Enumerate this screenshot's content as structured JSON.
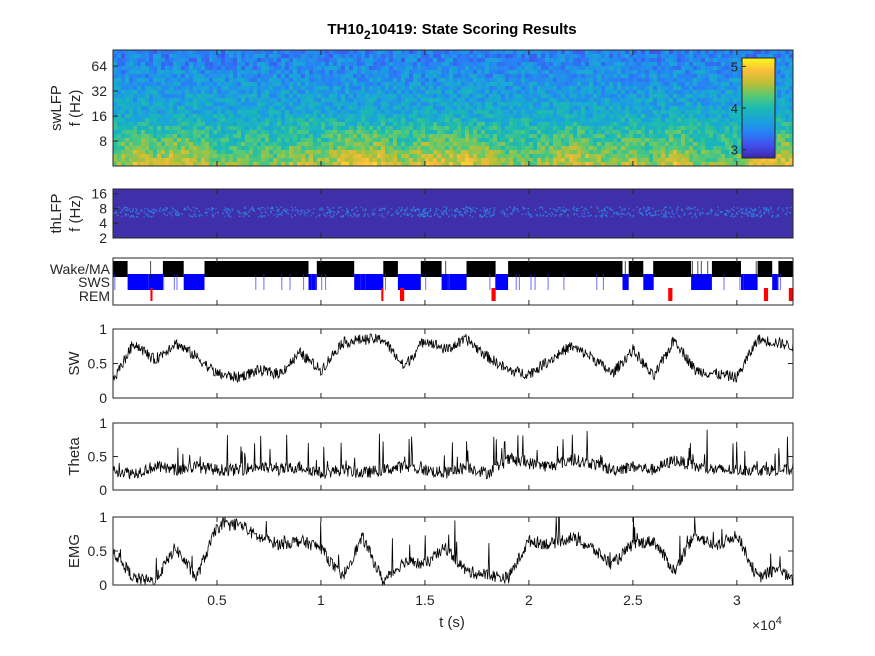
{
  "chart_data": {
    "title_main": "TH10",
    "title_sub": "2",
    "title_rest": "10419: State Scoring Results",
    "xlabel": "t (s)",
    "x_exponent_base": "×10",
    "x_exponent_power": "4",
    "xlim": [
      0,
      3.27
    ],
    "xticks": [
      "0.5",
      "1",
      "1.5",
      "2",
      "2.5",
      "3"
    ],
    "xtick_values": [
      0.5,
      1,
      1.5,
      2,
      2.5,
      3
    ],
    "spectrograms": [
      {
        "id": "sw",
        "type": "heatmap",
        "ylabel1": "swLFP",
        "ylabel2": "f (Hz)",
        "yticks": [
          "64",
          "32",
          "16",
          "8"
        ],
        "ytick_values": [
          64,
          32,
          16,
          8
        ],
        "ylim": [
          4,
          100
        ],
        "colorbar": {
          "ticks": [
            "5",
            "4",
            "3"
          ],
          "tick_values": [
            5,
            4,
            3
          ],
          "range": [
            2.8,
            5.2
          ]
        }
      },
      {
        "id": "th",
        "type": "heatmap",
        "ylabel1": "thLFP",
        "ylabel2": "f (Hz)",
        "yticks": [
          "16",
          "8",
          "4",
          "2"
        ],
        "ytick_values": [
          16,
          8,
          4,
          2
        ],
        "ylim": [
          2,
          20
        ]
      }
    ],
    "states": {
      "labels": [
        "Wake/MA",
        "SWS",
        "REM"
      ],
      "colors": [
        "#000000",
        "#0000ff",
        "#ff0000"
      ],
      "wake_bouts": [
        [
          0,
          0.07
        ],
        [
          0.24,
          0.34
        ],
        [
          0.44,
          0.94
        ],
        [
          0.98,
          1.16
        ],
        [
          1.3,
          1.37
        ],
        [
          1.48,
          1.58
        ],
        [
          1.7,
          1.84
        ],
        [
          1.9,
          2.45
        ],
        [
          2.48,
          2.55
        ],
        [
          2.6,
          2.78
        ],
        [
          2.88,
          3.02
        ],
        [
          3.1,
          3.17
        ],
        [
          3.2,
          3.27
        ]
      ],
      "sws_bouts": [
        [
          0.07,
          0.24
        ],
        [
          0.34,
          0.44
        ],
        [
          0.94,
          0.98
        ],
        [
          1.16,
          1.3
        ],
        [
          1.37,
          1.48
        ],
        [
          1.58,
          1.7
        ],
        [
          1.84,
          1.9
        ],
        [
          2.45,
          2.48
        ],
        [
          2.55,
          2.6
        ],
        [
          2.78,
          2.88
        ],
        [
          3.02,
          3.1
        ],
        [
          3.17,
          3.2
        ]
      ],
      "rem_bouts": [
        [
          0.18,
          0.19
        ],
        [
          1.29,
          1.3
        ],
        [
          1.38,
          1.4
        ],
        [
          1.82,
          1.84
        ],
        [
          2.67,
          2.69
        ],
        [
          3.13,
          3.15
        ],
        [
          3.25,
          3.27
        ]
      ]
    },
    "traces": [
      {
        "id": "sw",
        "type": "line",
        "name": "SW",
        "yticks": [
          "1",
          "0.5",
          "0"
        ],
        "ytick_values": [
          1,
          0.5,
          0
        ],
        "ylim": [
          0,
          1
        ],
        "x": [
          0,
          0.1,
          0.2,
          0.3,
          0.4,
          0.5,
          0.6,
          0.7,
          0.8,
          0.9,
          1.0,
          1.1,
          1.2,
          1.3,
          1.4,
          1.5,
          1.6,
          1.7,
          1.8,
          1.9,
          2.0,
          2.1,
          2.2,
          2.3,
          2.4,
          2.5,
          2.6,
          2.7,
          2.8,
          2.9,
          3.0,
          3.1,
          3.2,
          3.27
        ],
        "values": [
          0.25,
          0.8,
          0.55,
          0.8,
          0.6,
          0.35,
          0.3,
          0.4,
          0.35,
          0.65,
          0.4,
          0.8,
          0.85,
          0.85,
          0.45,
          0.85,
          0.7,
          0.85,
          0.6,
          0.4,
          0.35,
          0.55,
          0.75,
          0.6,
          0.35,
          0.7,
          0.3,
          0.85,
          0.4,
          0.35,
          0.3,
          0.85,
          0.8,
          0.75
        ]
      },
      {
        "id": "theta",
        "type": "line",
        "name": "Theta",
        "yticks": [
          "1",
          "0.5",
          "0"
        ],
        "ytick_values": [
          1,
          0.5,
          0
        ],
        "ylim": [
          0,
          1
        ],
        "x": [
          0,
          0.1,
          0.2,
          0.3,
          0.4,
          0.5,
          0.6,
          0.7,
          0.8,
          0.9,
          1.0,
          1.1,
          1.2,
          1.3,
          1.4,
          1.5,
          1.6,
          1.7,
          1.8,
          1.9,
          2.0,
          2.1,
          2.2,
          2.3,
          2.4,
          2.5,
          2.6,
          2.7,
          2.8,
          2.9,
          3.0,
          3.1,
          3.2,
          3.27
        ],
        "values": [
          0.3,
          0.25,
          0.35,
          0.3,
          0.35,
          0.3,
          0.3,
          0.35,
          0.3,
          0.35,
          0.25,
          0.3,
          0.25,
          0.3,
          0.35,
          0.3,
          0.25,
          0.35,
          0.25,
          0.45,
          0.4,
          0.35,
          0.45,
          0.4,
          0.3,
          0.35,
          0.3,
          0.45,
          0.35,
          0.3,
          0.3,
          0.3,
          0.3,
          0.3
        ]
      },
      {
        "id": "emg",
        "type": "line",
        "name": "EMG",
        "yticks": [
          "1",
          "0.5",
          "0"
        ],
        "ytick_values": [
          1,
          0.5,
          0
        ],
        "ylim": [
          0,
          1
        ],
        "x": [
          0,
          0.1,
          0.2,
          0.3,
          0.4,
          0.5,
          0.6,
          0.7,
          0.8,
          0.9,
          1.0,
          1.1,
          1.2,
          1.3,
          1.4,
          1.5,
          1.6,
          1.7,
          1.8,
          1.9,
          2.0,
          2.1,
          2.2,
          2.3,
          2.4,
          2.5,
          2.6,
          2.7,
          2.8,
          2.9,
          3.0,
          3.1,
          3.2,
          3.27
        ],
        "values": [
          0.5,
          0.1,
          0.05,
          0.55,
          0.1,
          0.85,
          0.9,
          0.7,
          0.6,
          0.65,
          0.55,
          0.1,
          0.7,
          0.05,
          0.35,
          0.3,
          0.55,
          0.2,
          0.15,
          0.1,
          0.65,
          0.6,
          0.7,
          0.55,
          0.3,
          0.6,
          0.65,
          0.2,
          0.75,
          0.55,
          0.75,
          0.1,
          0.25,
          0.05
        ]
      }
    ]
  }
}
